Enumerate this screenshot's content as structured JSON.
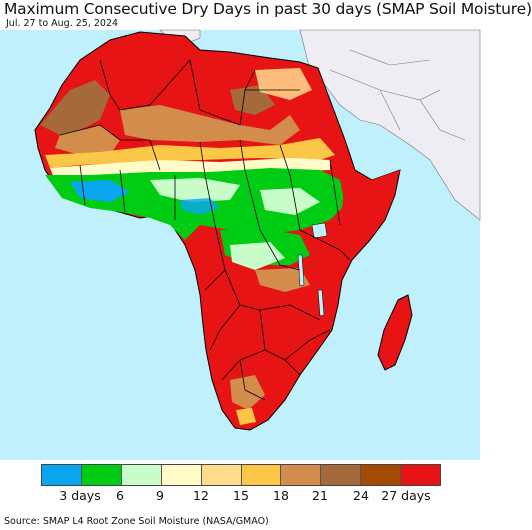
{
  "header": {
    "title": "Maximum Consecutive Dry Days in past 30 days (SMAP Soil Moisture)",
    "date_range": "Jul. 27 to Aug. 25, 2024"
  },
  "map": {
    "region": "Africa",
    "colors": {
      "ocean": "#bff0fb",
      "non_africa_land": "#f0ecf4",
      "boundary": "#000000"
    }
  },
  "legend": {
    "colors": [
      "#0aa6f0",
      "#00cc14",
      "#c8fcc8",
      "#fffcc8",
      "#ffdc8c",
      "#fac846",
      "#d28c4b",
      "#a5693c",
      "#a54b05",
      "#e61414"
    ],
    "ticks": [
      {
        "label": "3 days"
      },
      {
        "label": "6"
      },
      {
        "label": "9"
      },
      {
        "label": "12"
      },
      {
        "label": "15"
      },
      {
        "label": "18"
      },
      {
        "label": "21"
      },
      {
        "label": "24"
      },
      {
        "label": "27 days"
      }
    ]
  },
  "footer": {
    "source": "Source: SMAP L4 Root Zone Soil Moisture (NASA/GMAO)"
  }
}
